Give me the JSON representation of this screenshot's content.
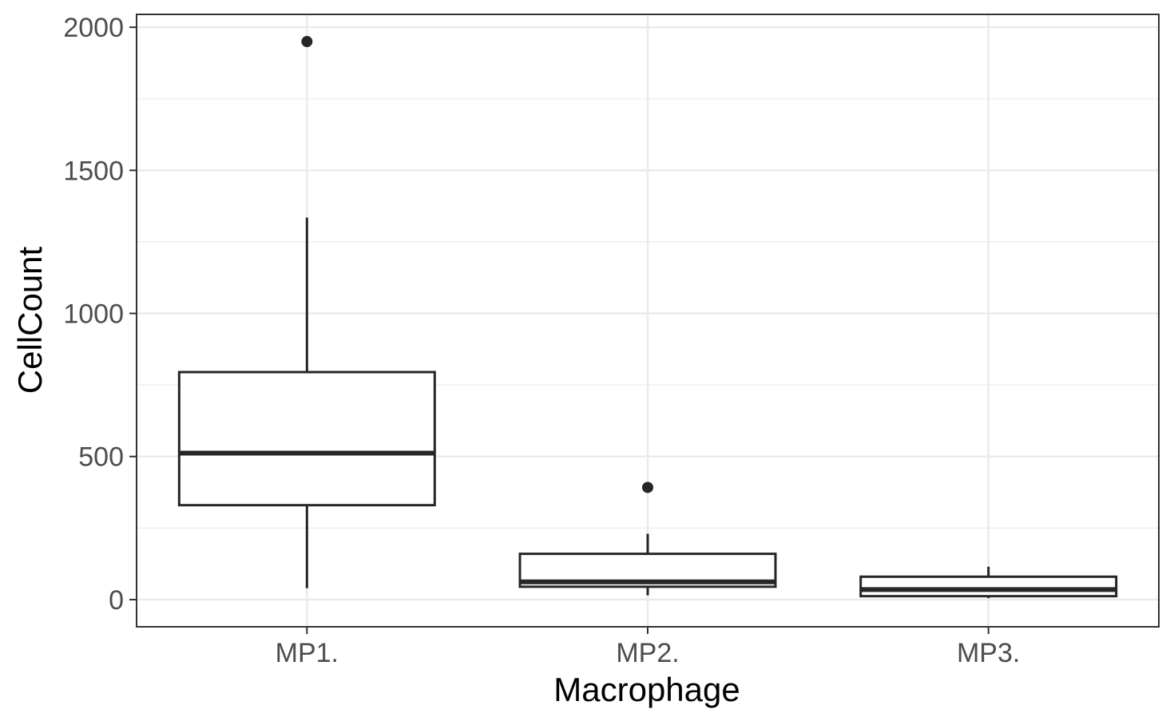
{
  "chart_data": {
    "type": "boxplot",
    "title": "",
    "xlabel": "Macrophage",
    "ylabel": "CellCount",
    "ylim": [
      -95,
      2045
    ],
    "y_ticks": [
      0,
      500,
      1000,
      1500,
      2000
    ],
    "y_tick_labels": [
      "0",
      "500",
      "1000",
      "1500",
      "2000"
    ],
    "y_minor_ticks": [
      250,
      750,
      1250,
      1750
    ],
    "grid": true,
    "categories": [
      "MP1.",
      "MP2.",
      "MP3."
    ],
    "boxes": [
      {
        "category": "MP1.",
        "whisker_low": 40,
        "q1": 330,
        "median": 512,
        "q3": 795,
        "whisker_high": 1335,
        "outliers": [
          1950
        ]
      },
      {
        "category": "MP2.",
        "whisker_low": 15,
        "q1": 45,
        "median": 62,
        "q3": 160,
        "whisker_high": 230,
        "outliers": [
          392
        ]
      },
      {
        "category": "MP3.",
        "whisker_low": 5,
        "q1": 12,
        "median": 35,
        "q3": 80,
        "whisker_high": 115,
        "outliers": []
      }
    ],
    "colors": {
      "box_stroke": "#262626",
      "box_fill": "#ffffff",
      "grid": "#ebebeb",
      "panel_border": "#333333",
      "tick_text": "#4d4d4d"
    }
  }
}
